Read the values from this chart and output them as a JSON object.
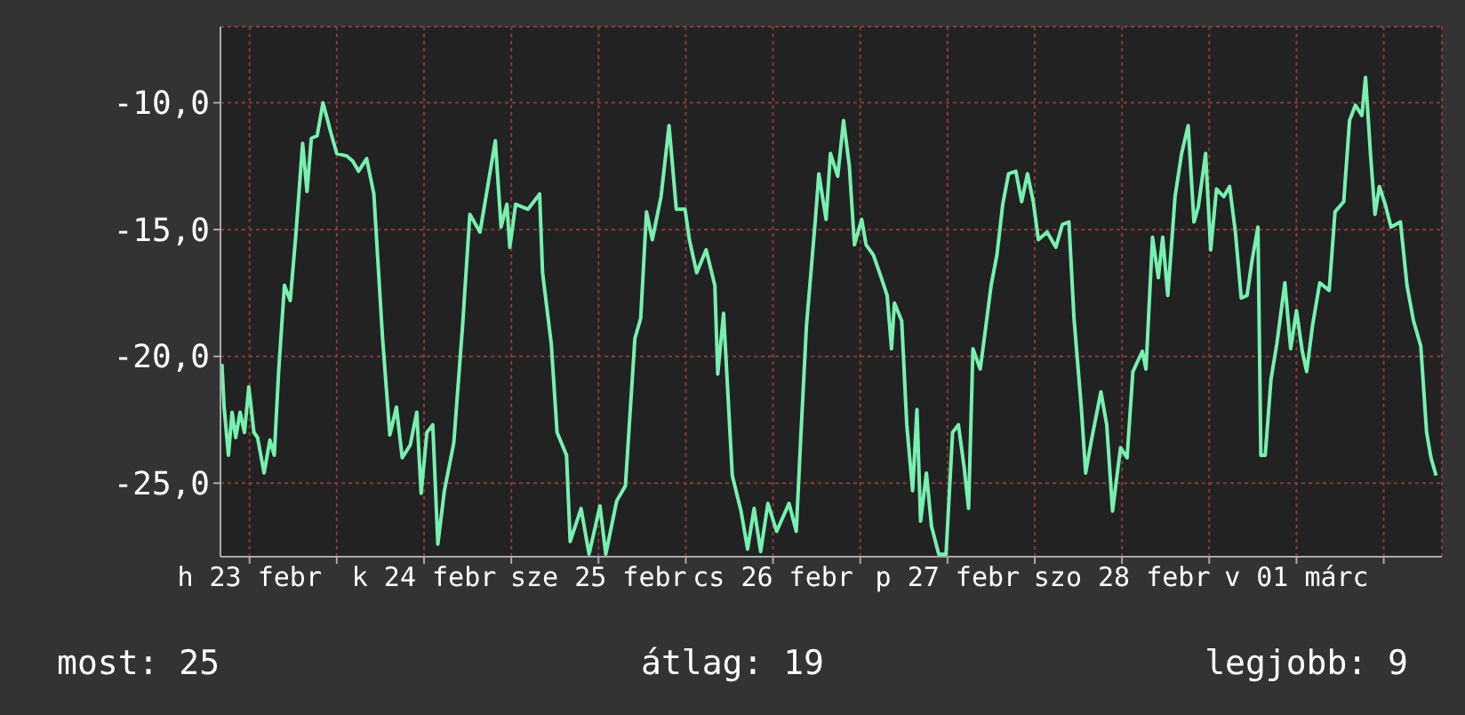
{
  "chart_data": {
    "type": "line",
    "x": [
      "--02-23T08:12",
      "--02-23T08:30",
      "--02-23T09:06",
      "--02-23T09:36",
      "--02-23T10:06",
      "--02-23T10:42",
      "--02-23T11:18",
      "--02-23T11:54",
      "--02-23T12:36",
      "--02-23T13:06",
      "--02-23T14:00",
      "--02-23T14:48",
      "--02-23T15:24",
      "--02-23T16:00",
      "--02-23T16:48",
      "--02-23T17:36",
      "--02-23T18:24",
      "--02-23T19:18",
      "--02-23T19:54",
      "--02-23T20:30",
      "--02-23T21:18",
      "--02-23T22:06",
      "--02-23T23:12",
      "--02-24T00:00",
      "--02-24T01:24",
      "--02-24T02:12",
      "--02-24T03:00",
      "--02-24T04:06",
      "--02-24T05:06",
      "--02-24T06:18",
      "--02-24T07:18",
      "--02-24T08:12",
      "--02-24T09:00",
      "--02-24T10:06",
      "--02-24T11:00",
      "--02-24T11:36",
      "--02-24T12:24",
      "--02-24T13:12",
      "--02-24T13:54",
      "--02-24T14:48",
      "--02-24T16:06",
      "--02-24T17:18",
      "--02-24T18:18",
      "--02-24T19:42",
      "--02-24T20:42",
      "--02-24T21:48",
      "--02-24T22:36",
      "--02-24T23:24",
      "--02-24T23:48",
      "--02-25T00:36",
      "--02-25T02:18",
      "--02-25T03:54",
      "--02-25T04:18",
      "--02-25T05:30",
      "--02-25T06:18",
      "--02-25T07:36",
      "--02-25T08:06",
      "--02-25T09:36",
      "--02-25T10:42",
      "--02-25T12:12",
      "--02-25T13:00",
      "--02-25T14:30",
      "--02-25T15:42",
      "--02-25T17:00",
      "--02-25T17:48",
      "--02-25T18:36",
      "--02-25T19:24",
      "--02-25T20:36",
      "--02-25T21:42",
      "--02-25T22:42",
      "--02-25T23:54",
      "--02-26T00:30",
      "--02-26T01:30",
      "--02-26T02:48",
      "--02-26T04:00",
      "--02-26T04:24",
      "--02-26T05:12",
      "--02-26T06:24",
      "--02-26T07:36",
      "--02-26T08:30",
      "--02-26T09:24",
      "--02-26T10:18",
      "--02-26T11:18",
      "--02-26T12:30",
      "--02-26T14:12",
      "--02-26T15:12",
      "--02-26T15:48",
      "--02-26T16:36",
      "--02-26T17:48",
      "--02-26T18:18",
      "--02-26T19:18",
      "--02-26T19:54",
      "--02-26T20:54",
      "--02-26T21:42",
      "--02-26T22:30",
      "--02-26T23:12",
      "--02-27T00:12",
      "--02-27T00:48",
      "--02-27T01:48",
      "--02-27T02:54",
      "--02-27T03:42",
      "--02-27T04:18",
      "--02-27T04:42",
      "--02-27T05:42",
      "--02-27T06:24",
      "--02-27T07:12",
      "--02-27T07:48",
      "--02-27T08:18",
      "--02-27T09:06",
      "--02-27T09:48",
      "--02-27T10:48",
      "--02-27T11:48",
      "--02-27T12:42",
      "--02-27T13:30",
      "--02-27T14:18",
      "--02-27T14:54",
      "--02-27T15:30",
      "--02-27T16:30",
      "--02-27T17:06",
      "--02-27T18:00",
      "--02-27T18:48",
      "--02-27T19:36",
      "--02-27T20:24",
      "--02-27T21:24",
      "--02-27T22:12",
      "--02-27T23:00",
      "--02-27T23:48",
      "--02-28T00:30",
      "--02-28T01:42",
      "--02-28T02:54",
      "--02-28T03:48",
      "--02-28T04:42",
      "--02-28T05:24",
      "--02-28T06:24",
      "--02-28T07:00",
      "--02-28T07:48",
      "--02-28T09:06",
      "--02-28T09:54",
      "--02-28T10:42",
      "--02-28T11:48",
      "--02-28T12:42",
      "--02-28T13:30",
      "--02-28T14:48",
      "--02-28T15:18",
      "--02-28T16:12",
      "--02-28T17:00",
      "--02-28T17:36",
      "--02-28T18:18",
      "--02-28T19:18",
      "--02-28T20:12",
      "--02-28T21:06",
      "--02-28T21:54",
      "--02-28T22:30",
      "--02-28T23:30",
      "--03-01T00:12",
      "--03-01T01:00",
      "--03-01T02:00",
      "--03-01T02:48",
      "--03-01T03:36",
      "--03-01T04:24",
      "--03-01T05:12",
      "--03-01T05:54",
      "--03-01T06:42",
      "--03-01T07:06",
      "--03-01T07:42",
      "--03-01T08:30",
      "--03-01T09:18",
      "--03-01T10:24",
      "--03-01T11:12",
      "--03-01T12:00",
      "--03-01T12:48",
      "--03-01T13:24",
      "--03-01T14:12",
      "--03-01T15:12",
      "--03-01T16:30",
      "--03-01T17:18",
      "--03-01T18:30",
      "--03-01T19:18",
      "--03-01T20:06",
      "--03-01T21:00",
      "--03-01T21:30",
      "--03-01T22:12",
      "--03-01T22:48",
      "--03-01T23:24",
      "--03-02T00:12",
      "--03-02T01:00",
      "--03-02T02:18",
      "--03-02T03:12",
      "--03-02T04:06",
      "--03-02T05:06",
      "--03-02T05:54",
      "--03-02T06:30",
      "--03-02T07:12"
    ],
    "series": [
      {
        "color": "#77f0b0",
        "values": [
          -20.3,
          -22.0,
          -23.9,
          -22.2,
          -23.2,
          -22.2,
          -23.0,
          -21.2,
          -23.0,
          -23.2,
          -24.6,
          -23.3,
          -23.9,
          -20.6,
          -17.2,
          -17.8,
          -15.1,
          -11.6,
          -13.5,
          -11.4,
          -11.3,
          -10.0,
          -11.2,
          -12.0,
          -12.1,
          -12.3,
          -12.7,
          -12.2,
          -13.6,
          -19.3,
          -23.1,
          -22.0,
          -24.0,
          -23.5,
          -22.2,
          -25.4,
          -23.0,
          -22.7,
          -27.4,
          -25.3,
          -23.4,
          -18.8,
          -14.4,
          -15.1,
          -13.4,
          -11.5,
          -14.9,
          -14.0,
          -15.7,
          -14.0,
          -14.2,
          -13.6,
          -16.7,
          -19.5,
          -23.0,
          -23.9,
          -27.3,
          -26.0,
          -27.8,
          -25.9,
          -27.8,
          -25.7,
          -25.1,
          -19.3,
          -18.5,
          -14.3,
          -15.4,
          -13.7,
          -10.9,
          -14.2,
          -14.2,
          -15.4,
          -16.7,
          -15.8,
          -17.2,
          -20.7,
          -18.3,
          -24.7,
          -26.1,
          -27.6,
          -26.0,
          -27.7,
          -25.8,
          -26.9,
          -25.8,
          -26.9,
          -23.3,
          -18.8,
          -14.7,
          -12.8,
          -14.6,
          -12.0,
          -12.9,
          -10.7,
          -12.5,
          -15.6,
          -14.6,
          -15.6,
          -16.0,
          -16.9,
          -17.6,
          -19.7,
          -17.9,
          -18.6,
          -22.7,
          -25.3,
          -22.1,
          -26.5,
          -24.6,
          -26.7,
          -27.8,
          -27.8,
          -23.0,
          -22.7,
          -24.4,
          -26.0,
          -19.7,
          -20.5,
          -19.2,
          -17.2,
          -16.0,
          -14.0,
          -12.8,
          -12.7,
          -13.9,
          -12.8,
          -13.9,
          -15.4,
          -15.1,
          -15.7,
          -14.8,
          -14.7,
          -18.5,
          -22.0,
          -24.6,
          -23.3,
          -21.4,
          -22.7,
          -26.1,
          -23.6,
          -24.0,
          -20.6,
          -19.8,
          -20.5,
          -15.3,
          -16.9,
          -15.3,
          -17.6,
          -13.7,
          -12.0,
          -10.9,
          -14.7,
          -14.1,
          -12.0,
          -15.8,
          -13.4,
          -13.7,
          -13.3,
          -15.1,
          -17.7,
          -17.6,
          -16.2,
          -14.9,
          -23.9,
          -23.9,
          -20.9,
          -19.5,
          -17.1,
          -19.7,
          -18.2,
          -19.8,
          -20.6,
          -18.8,
          -17.1,
          -17.4,
          -14.3,
          -13.9,
          -10.7,
          -10.1,
          -10.5,
          -9.0,
          -12.1,
          -14.4,
          -13.3,
          -14.0,
          -14.9,
          -14.7,
          -17.2,
          -18.6,
          -19.6,
          -23.0,
          -24.0,
          -24.7
        ]
      }
    ],
    "xlim": [
      "--02-23T08:00",
      "--03-02T08:00"
    ],
    "xticks": [
      {
        "value": "--02-23T12:00",
        "label": "h 23 febr"
      },
      {
        "value": "--02-24T00:00",
        "label": null
      },
      {
        "value": "--02-24T12:00",
        "label": "k 24 febr"
      },
      {
        "value": "--02-25T00:00",
        "label": null
      },
      {
        "value": "--02-25T12:00",
        "label": "sze 25 febr"
      },
      {
        "value": "--02-26T00:00",
        "label": null
      },
      {
        "value": "--02-26T12:00",
        "label": "cs 26 febr"
      },
      {
        "value": "--02-27T00:00",
        "label": null
      },
      {
        "value": "--02-27T12:00",
        "label": "p 27 febr"
      },
      {
        "value": "--02-28T00:00",
        "label": null
      },
      {
        "value": "--02-28T12:00",
        "label": "szo 28 febr"
      },
      {
        "value": "--03-01T00:00",
        "label": null
      },
      {
        "value": "--03-01T12:00",
        "label": "v 01 márc"
      },
      {
        "value": "--03-02T00:00",
        "label": null
      }
    ],
    "ylim": [
      -27.9,
      -7.0
    ],
    "yticks": [
      {
        "value": -25,
        "label": "-25,0"
      },
      {
        "value": -20,
        "label": "-20,0"
      },
      {
        "value": -15,
        "label": "-15,0"
      },
      {
        "value": -10,
        "label": "-10,0"
      }
    ],
    "grid": true,
    "annotations": [
      "most: 25",
      "átlag: 19",
      "legjobb: 9"
    ]
  }
}
